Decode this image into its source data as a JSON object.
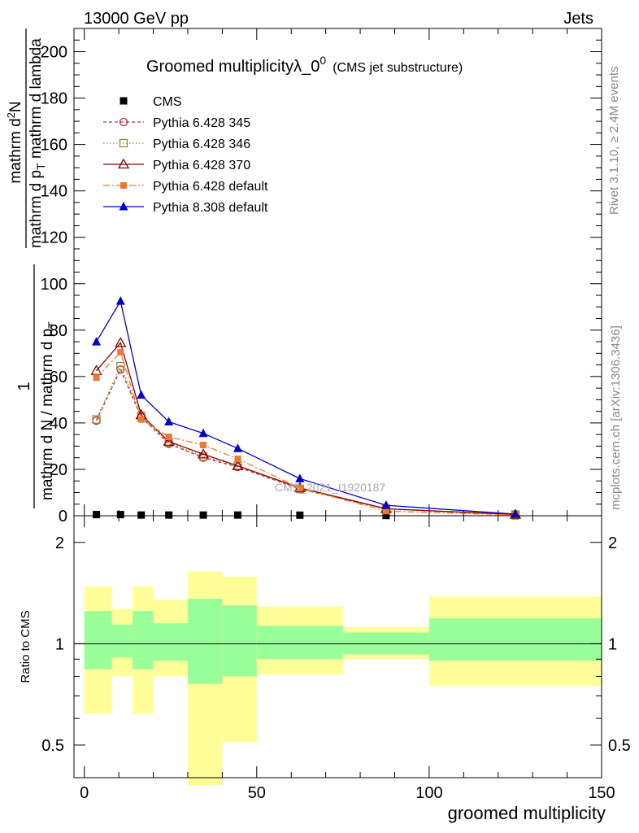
{
  "header": {
    "left": "13000 GeV pp",
    "right": "Jets",
    "title_main": "Groomed multiplicity",
    "title_lambda": "λ_0",
    "title_sup": "0",
    "title_paren": "(CMS jet substructure)"
  },
  "side": {
    "top": "Rivet 3.1.10, ≥ 2.4M events",
    "bottom": "mcplots.cern.ch [arXiv:1306.3436]"
  },
  "watermark": "CMS_2021_I1920187",
  "ylabel": {
    "num_1": "1",
    "den_1": "mathrm d N / mathrm d p",
    "den_1_sub": "T",
    "num_2": "mathrm d",
    "num_2_sup": "2",
    "num_2_b": "N",
    "den_2": "mathrm d p",
    "den_2_sub": "T",
    "den_2_b": " mathrm d lambda"
  },
  "ratio_ylabel": "Ratio to CMS",
  "xlabel": "groomed multiplicity",
  "chart_data": [
    {
      "type": "line",
      "panel": "main",
      "title": "Groomed multiplicityλ_0^0 (CMS jet substructure)",
      "xlabel": "groomed multiplicity",
      "ylabel": "1 / (mathrm d N / mathrm d p_T) · mathrm d^2 N / (mathrm d p_T mathrm d lambda)",
      "xlim": [
        -3,
        150
      ],
      "ylim": [
        0,
        210
      ],
      "x_ticks": [
        0,
        50,
        100,
        150
      ],
      "y_ticks": [
        0,
        20,
        40,
        60,
        80,
        100,
        120,
        140,
        160,
        180,
        200
      ],
      "legend_position": "top-left",
      "x": [
        3.5,
        10.5,
        16.5,
        24.5,
        34.5,
        44.5,
        62.5,
        87.5,
        125
      ],
      "series": [
        {
          "name": "CMS",
          "style": "data",
          "color": "#000000",
          "values": [
            0.5,
            0.5,
            0.3,
            0.3,
            0.3,
            0.3,
            0.25,
            0.1,
            0.05
          ]
        },
        {
          "name": "Pythia 6.428 345",
          "style": "p345",
          "color": "#bb3344",
          "values": [
            41,
            63,
            42.5,
            31,
            25,
            21,
            11.5,
            3,
            0.5
          ]
        },
        {
          "name": "Pythia 6.428 346",
          "style": "p346",
          "color": "#998833",
          "values": [
            41.5,
            64.5,
            43,
            31.5,
            25.5,
            21.5,
            11.5,
            3,
            0.5
          ]
        },
        {
          "name": "Pythia 6.428 370",
          "style": "p370",
          "color": "#880000",
          "values": [
            62.5,
            74.5,
            43.5,
            32,
            26.5,
            21.5,
            12,
            3,
            0.5
          ]
        },
        {
          "name": "Pythia 6.428 default",
          "style": "p6def",
          "color": "#ee7733",
          "values": [
            59.5,
            70.5,
            41.5,
            34,
            30.5,
            24.5,
            12,
            2,
            0.3
          ]
        },
        {
          "name": "Pythia 8.308 default",
          "style": "p8",
          "color": "#0000cc",
          "values": [
            75,
            92.5,
            52,
            40.5,
            35.5,
            29,
            16,
            4.5,
            0.7
          ]
        }
      ]
    },
    {
      "type": "area",
      "panel": "ratio",
      "ylabel": "Ratio to CMS",
      "xlabel": "groomed multiplicity",
      "xlim": [
        -3,
        150
      ],
      "ylim": [
        0.4,
        2.4
      ],
      "log_y": true,
      "y_ticks": [
        0.5,
        1,
        2
      ],
      "bands": [
        {
          "x_lo": 0,
          "x_hi": 8,
          "stat_lo": 0.84,
          "stat_hi": 1.25,
          "tot_lo": 0.62,
          "tot_hi": 1.48
        },
        {
          "x_lo": 8,
          "x_hi": 14,
          "stat_lo": 0.91,
          "stat_hi": 1.14,
          "tot_lo": 0.8,
          "tot_hi": 1.27
        },
        {
          "x_lo": 14,
          "x_hi": 20,
          "stat_lo": 0.84,
          "stat_hi": 1.25,
          "tot_lo": 0.62,
          "tot_hi": 1.48
        },
        {
          "x_lo": 20,
          "x_hi": 30,
          "stat_lo": 0.89,
          "stat_hi": 1.15,
          "tot_lo": 0.8,
          "tot_hi": 1.35
        },
        {
          "x_lo": 30,
          "x_hi": 40,
          "stat_lo": 0.76,
          "stat_hi": 1.36,
          "tot_lo": 0.38,
          "tot_hi": 1.64
        },
        {
          "x_lo": 40,
          "x_hi": 50,
          "stat_lo": 0.8,
          "stat_hi": 1.3,
          "tot_lo": 0.51,
          "tot_hi": 1.58
        },
        {
          "x_lo": 50,
          "x_hi": 75,
          "stat_lo": 0.9,
          "stat_hi": 1.13,
          "tot_lo": 0.81,
          "tot_hi": 1.29
        },
        {
          "x_lo": 75,
          "x_hi": 100,
          "stat_lo": 0.93,
          "stat_hi": 1.08,
          "tot_lo": 0.9,
          "tot_hi": 1.12
        },
        {
          "x_lo": 100,
          "x_hi": 150,
          "stat_lo": 0.89,
          "stat_hi": 1.19,
          "tot_lo": 0.75,
          "tot_hi": 1.38
        }
      ],
      "colors": {
        "stat": "#99ff99",
        "total": "#ffff99"
      }
    }
  ]
}
